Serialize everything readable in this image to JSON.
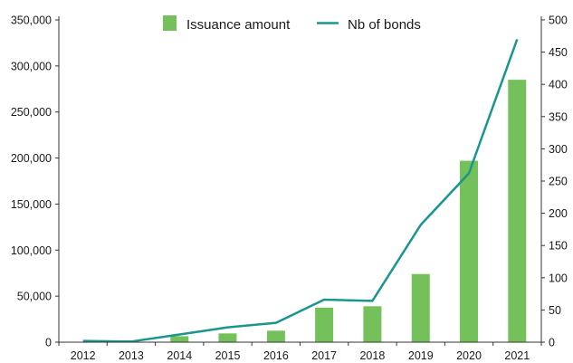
{
  "chart_data": {
    "type": "bar",
    "title": "",
    "categories": [
      "2012",
      "2013",
      "2014",
      "2015",
      "2016",
      "2017",
      "2018",
      "2019",
      "2020",
      "2021"
    ],
    "series": [
      {
        "name": "Issuance amount",
        "type": "bar",
        "axis": "left",
        "color": "#74c15b",
        "values": [
          300,
          0,
          6500,
          9500,
          12500,
          37500,
          39000,
          74000,
          197000,
          285000
        ]
      },
      {
        "name": "Nb of bonds",
        "type": "line",
        "axis": "right",
        "color": "#1a9590",
        "values": [
          2,
          1,
          12,
          23,
          30,
          66,
          64,
          182,
          262,
          470
        ]
      }
    ],
    "y_left": {
      "label": "",
      "lim": [
        0,
        350000
      ],
      "ticks": [
        0,
        50000,
        100000,
        150000,
        200000,
        250000,
        300000,
        350000
      ],
      "tick_labels": [
        "0",
        "50,000",
        "100,000",
        "150,000",
        "200,000",
        "250,000",
        "300,000",
        "350,000"
      ]
    },
    "y_right": {
      "label": "",
      "lim": [
        0,
        500
      ],
      "ticks": [
        0,
        50,
        100,
        150,
        200,
        250,
        300,
        350,
        400,
        450,
        500
      ],
      "tick_labels": [
        "0",
        "50",
        "100",
        "150",
        "200",
        "250",
        "300",
        "350",
        "400",
        "450",
        "500"
      ]
    },
    "xlabel": "",
    "grid": false,
    "legend": {
      "position": "top-center"
    }
  }
}
